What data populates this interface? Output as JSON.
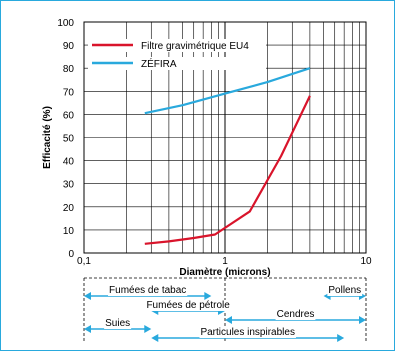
{
  "frame_color": "#29a9dd",
  "chart_data": {
    "type": "line",
    "xscale": "log",
    "xlim": [
      0.1,
      10
    ],
    "ylim": [
      0,
      100
    ],
    "grid": true,
    "legend_position": "top-left",
    "xlabel": "Diamètre (microns)",
    "ylabel": "Efficacité (%)",
    "xticks": [
      "0,1",
      "1",
      "10"
    ],
    "yticks": [
      "0",
      "10",
      "20",
      "30",
      "40",
      "50",
      "60",
      "70",
      "80",
      "90",
      "100"
    ],
    "series": [
      {
        "name": "Filtre gravimétrique EU4",
        "color": "#d9142b",
        "x": [
          0.27,
          0.4,
          0.6,
          0.85,
          1.5,
          2.5,
          4.0
        ],
        "y": [
          4,
          5,
          6.5,
          8,
          18,
          42,
          68
        ]
      },
      {
        "name": "ZÉFIRA",
        "color": "#29a9dd",
        "x": [
          0.27,
          0.5,
          1.0,
          2.0,
          4.0
        ],
        "y": [
          60.5,
          64,
          69,
          74,
          80
        ]
      }
    ],
    "particle_ranges": [
      {
        "label": "Fumées de tabac",
        "from": 0.1,
        "to": 0.8
      },
      {
        "label": "Pollens",
        "from": 5,
        "to": 10
      },
      {
        "label": "Fumées de pétrole",
        "from": 0.3,
        "to": 1.0
      },
      {
        "label": "Cendres",
        "from": 1.0,
        "to": 10
      },
      {
        "label": "Suies",
        "from": 0.1,
        "to": 0.3
      },
      {
        "label": "Particules inspirables",
        "from": 0.3,
        "to": 7
      }
    ],
    "range_color": "#29a9dd"
  }
}
